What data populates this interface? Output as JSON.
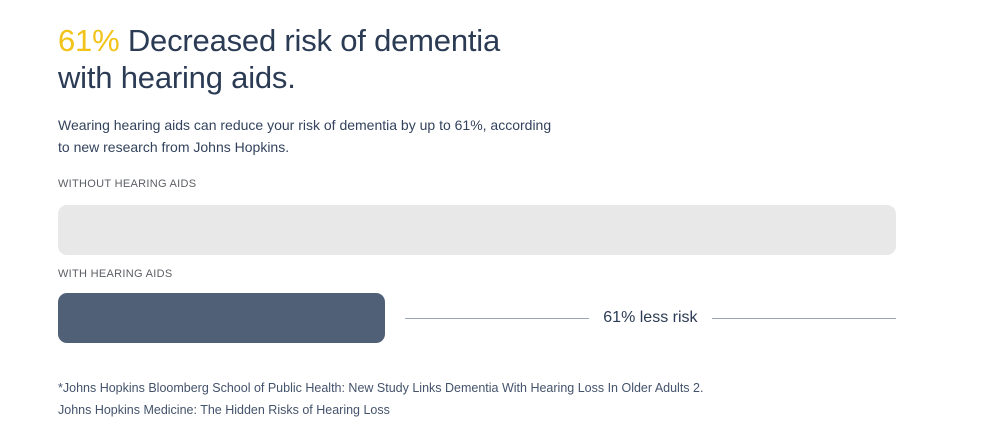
{
  "headline": {
    "highlight": "61%",
    "line1_rest": "Decreased risk of dementia",
    "line2": "with hearing aids.",
    "highlight_color": "#f2c318",
    "text_color": "#2b3b54"
  },
  "subtitle": "Wearing hearing aids can reduce your risk of dementia by up to 61%, according to new research from Johns Hopkins.",
  "chart_data": {
    "type": "bar",
    "orientation": "horizontal",
    "categories": [
      "WITHOUT HEARING AIDS",
      "WITH HEARING AIDS"
    ],
    "values": [
      100,
      39
    ],
    "value_unit": "relative dementia risk, percent of baseline",
    "xlim": [
      0,
      100
    ],
    "bar_colors": [
      "#e8e8e8",
      "#506077"
    ],
    "annotation": "61% less risk",
    "annotation_line_color": "#9aa6b6",
    "grid": false,
    "legend": false
  },
  "labels": {
    "bar1": "WITHOUT HEARING AIDS",
    "bar2": "WITH HEARING AIDS"
  },
  "annotation": {
    "text": "61% less risk"
  },
  "footnotes": {
    "line1": "*Johns Hopkins Bloomberg School of Public Health: New Study Links Dementia With Hearing Loss In Older Adults 2.",
    "line2": "Johns Hopkins Medicine: The Hidden Risks of Hearing Loss"
  }
}
